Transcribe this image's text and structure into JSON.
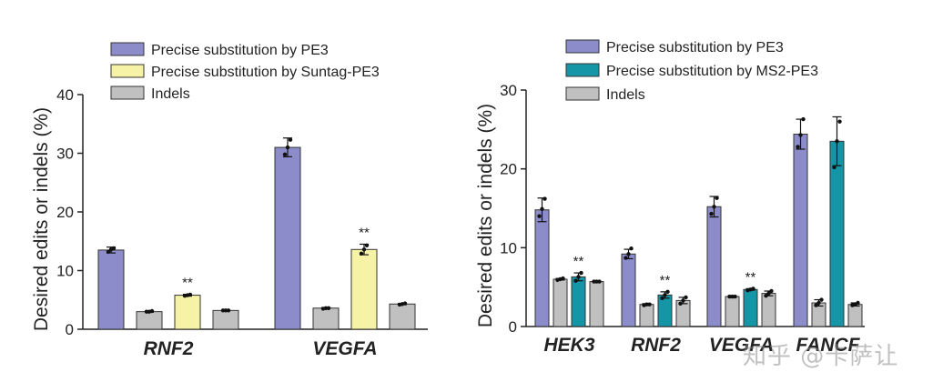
{
  "chart_data": [
    {
      "type": "bar",
      "categories": [
        "RNF2",
        "VEGFA"
      ],
      "series": [
        {
          "name": "Precise substitution by PE3",
          "color": "#8B8CC9",
          "values": [
            13.5,
            31.0
          ],
          "errors": [
            0.5,
            1.6
          ],
          "points": [
            [
              13.2,
              13.6,
              13.8
            ],
            [
              29.8,
              31.0,
              32.3
            ]
          ]
        },
        {
          "name": "Indels",
          "color": "#C0C0C0",
          "values": [
            3.0,
            3.6
          ],
          "errors": [
            0.1,
            0.1
          ],
          "points": [
            [
              3.0,
              3.0,
              3.1
            ],
            [
              3.5,
              3.6,
              3.6
            ]
          ]
        },
        {
          "name": "Precise substitution by Suntag-PE3",
          "color": "#F7F3A6",
          "values": [
            5.8,
            13.6
          ],
          "errors": [
            0.15,
            0.9
          ],
          "points": [
            [
              5.7,
              5.8,
              5.9
            ],
            [
              12.9,
              13.6,
              14.3
            ]
          ]
        },
        {
          "name": "Indels",
          "color": "#C0C0C0",
          "values": [
            3.2,
            4.3
          ],
          "errors": [
            0.05,
            0.1
          ],
          "points": [
            [
              3.2,
              3.2,
              3.2
            ],
            [
              4.2,
              4.3,
              4.4
            ]
          ]
        }
      ],
      "legend": [
        "Precise substitution by PE3",
        "Precise substitution by Suntag-PE3",
        "Indels"
      ],
      "annotations": [
        {
          "category": "RNF2",
          "series": 2,
          "text": "**"
        },
        {
          "category": "VEGFA",
          "series": 2,
          "text": "**"
        }
      ],
      "ylabel": "Desired edits or indels (%)",
      "ylim": [
        0,
        40
      ],
      "yticks": [
        0,
        10,
        20,
        30,
        40
      ],
      "grid": false,
      "legend_placement": "top"
    },
    {
      "type": "bar",
      "categories": [
        "HEK3",
        "RNF2",
        "VEGFA",
        "FANCF"
      ],
      "series": [
        {
          "name": "Precise substitution by PE3",
          "color": "#8B8CC9",
          "values": [
            14.8,
            9.2,
            15.2,
            24.4
          ],
          "errors": [
            1.5,
            0.6,
            1.3,
            1.9
          ],
          "points": [
            [
              14.0,
              14.9,
              16.2
            ],
            [
              8.7,
              9.2,
              9.9
            ],
            [
              14.3,
              15.2,
              16.3
            ],
            [
              22.8,
              24.3,
              26.3
            ]
          ]
        },
        {
          "name": "Indels",
          "color": "#C0C0C0",
          "values": [
            6.0,
            2.8,
            3.8,
            3.0
          ],
          "errors": [
            0.1,
            0.1,
            0.1,
            0.4
          ],
          "points": [
            [
              5.9,
              6.0,
              6.1
            ],
            [
              2.7,
              2.8,
              2.8
            ],
            [
              3.8,
              3.8,
              3.8
            ],
            [
              2.7,
              3.0,
              3.4
            ]
          ]
        },
        {
          "name": "Precise substitution by MS2-PE3",
          "color": "#1596A7",
          "values": [
            6.3,
            4.0,
            4.7,
            23.5
          ],
          "errors": [
            0.5,
            0.4,
            0.1,
            3.1
          ],
          "points": [
            [
              5.8,
              6.3,
              6.8
            ],
            [
              3.6,
              4.0,
              4.4
            ],
            [
              4.6,
              4.7,
              4.8
            ],
            [
              20.2,
              23.5,
              26.0
            ]
          ]
        },
        {
          "name": "Indels",
          "color": "#C0C0C0",
          "values": [
            5.7,
            3.3,
            4.2,
            2.8
          ],
          "errors": [
            0.05,
            0.4,
            0.3,
            0.2
          ],
          "points": [
            [
              5.7,
              5.7,
              5.7
            ],
            [
              2.9,
              3.3,
              3.7
            ],
            [
              3.9,
              4.2,
              4.5
            ],
            [
              2.7,
              2.8,
              3.0
            ]
          ]
        }
      ],
      "legend": [
        "Precise substitution by PE3",
        "Precise substitution by MS2-PE3",
        "Indels"
      ],
      "annotations": [
        {
          "category": "HEK3",
          "series": 2,
          "text": "**"
        },
        {
          "category": "RNF2",
          "series": 2,
          "text": "**"
        },
        {
          "category": "VEGFA",
          "series": 2,
          "text": "**"
        }
      ],
      "ylabel": "Desired edits or indels (%)",
      "ylim": [
        0,
        30
      ],
      "yticks": [
        0,
        10,
        20,
        30
      ],
      "grid": false,
      "legend_placement": "top"
    }
  ],
  "watermark": "知乎 @卡萨让"
}
